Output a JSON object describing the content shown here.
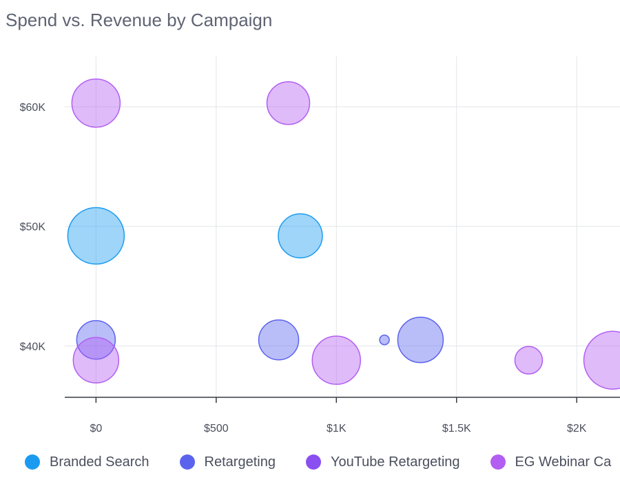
{
  "chart_data": {
    "type": "scatter",
    "title": "Spend vs. Revenue by Campaign",
    "xlabel": "",
    "ylabel": "",
    "xlim": [
      -130,
      2180
    ],
    "ylim": [
      35700,
      64200
    ],
    "x_ticks": [
      {
        "value": 0,
        "label": "$0"
      },
      {
        "value": 500,
        "label": "$500"
      },
      {
        "value": 1000,
        "label": "$1K"
      },
      {
        "value": 1500,
        "label": "$1.5K"
      },
      {
        "value": 2000,
        "label": "$2K"
      }
    ],
    "y_ticks": [
      {
        "value": 40000,
        "label": "$40K"
      },
      {
        "value": 50000,
        "label": "$50K"
      },
      {
        "value": 60000,
        "label": "$60K"
      }
    ],
    "grid": true,
    "legend_position": "bottom",
    "series": [
      {
        "name": "Branded Search",
        "color": "#1a9bf0",
        "points": [
          {
            "x": 0,
            "y": 49200,
            "size": 41
          },
          {
            "x": 850,
            "y": 49200,
            "size": 32
          }
        ]
      },
      {
        "name": "Retargeting",
        "color": "#5b63ee",
        "points": [
          {
            "x": 0,
            "y": 40500,
            "size": 28
          },
          {
            "x": 760,
            "y": 40500,
            "size": 29
          },
          {
            "x": 1200,
            "y": 40500,
            "size": 7
          },
          {
            "x": 1350,
            "y": 40500,
            "size": 33
          }
        ]
      },
      {
        "name": "YouTube Retargeting",
        "color": "#8a4ff0",
        "points": []
      },
      {
        "name": "EG Webinar Campaign",
        "legend_label": "EG Webinar Ca",
        "color": "#b25ef2",
        "points": [
          {
            "x": 0,
            "y": 60300,
            "size": 35
          },
          {
            "x": 800,
            "y": 60300,
            "size": 31
          },
          {
            "x": 0,
            "y": 38800,
            "size": 33
          },
          {
            "x": 1000,
            "y": 38800,
            "size": 35
          },
          {
            "x": 1800,
            "y": 38800,
            "size": 20
          },
          {
            "x": 2150,
            "y": 38800,
            "size": 42
          }
        ]
      }
    ]
  }
}
